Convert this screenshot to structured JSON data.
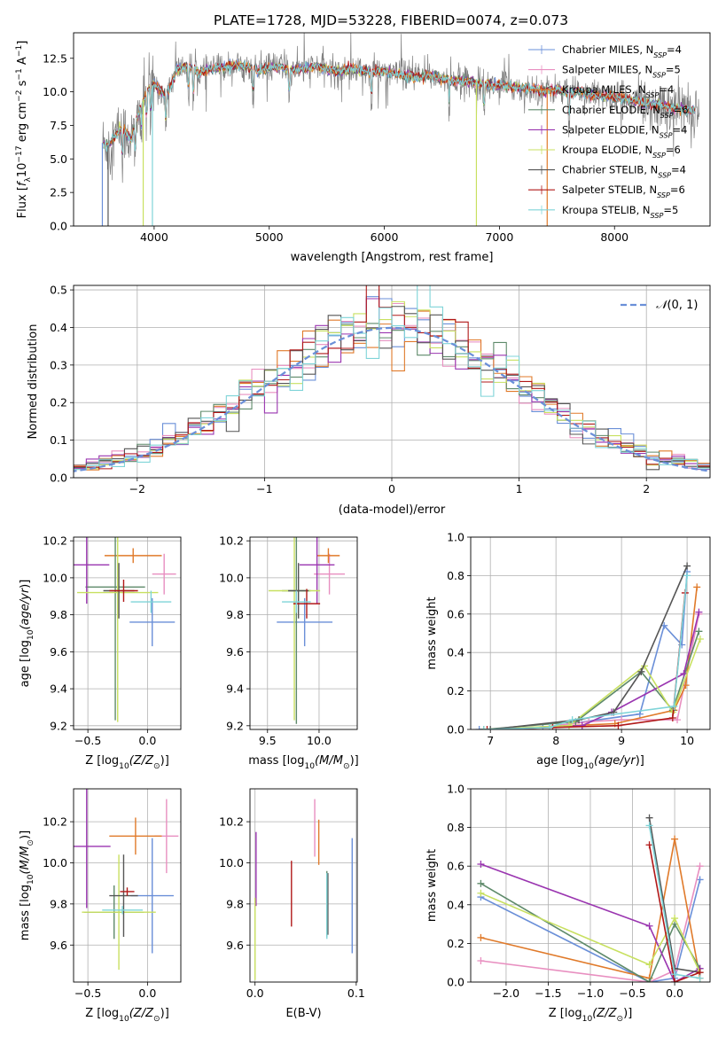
{
  "title": "PLATE=1728, MJD=53228, FIBERID=0074, z=0.073",
  "models": [
    {
      "label": "Chabrier MILES, N_{SSP}=4",
      "base": "Chabrier MILES, N",
      "sub": "SSP",
      "tail": "=4",
      "color": "#6a8fd8"
    },
    {
      "label": "Salpeter MILES, N_{SSP}=5",
      "base": "Salpeter MILES, N",
      "sub": "SSP",
      "tail": "=5",
      "color": "#e88fc0"
    },
    {
      "label": "Kroupa MILES, N_{SSP}=4",
      "base": "Kroupa MILES, N",
      "sub": "SSP",
      "tail": "=4",
      "color": "#e07a2a"
    },
    {
      "label": "Chabrier ELODIE, N_{SSP}=6",
      "base": "Chabrier ELODIE, N",
      "sub": "SSP",
      "tail": "=6",
      "color": "#5e8a6a"
    },
    {
      "label": "Salpeter ELODIE, N_{SSP}=4",
      "base": "Salpeter ELODIE, N",
      "sub": "SSP",
      "tail": "=4",
      "color": "#9a35b0"
    },
    {
      "label": "Kroupa ELODIE, N_{SSP}=6",
      "base": "Kroupa ELODIE, N",
      "sub": "SSP",
      "tail": "=6",
      "color": "#c8e060"
    },
    {
      "label": "Chabrier STELIB, N_{SSP}=4",
      "base": "Chabrier STELIB, N",
      "sub": "SSP",
      "tail": "=4",
      "color": "#555555"
    },
    {
      "label": "Salpeter STELIB, N_{SSP}=6",
      "base": "Salpeter STELIB, N",
      "sub": "SSP",
      "tail": "=6",
      "color": "#b01818"
    },
    {
      "label": "Kroupa STELIB, N_{SSP}=5",
      "base": "Kroupa STELIB, N",
      "sub": "SSP",
      "tail": "=5",
      "color": "#7fd4d8"
    }
  ],
  "chart_data": [
    {
      "id": "spectrum",
      "type": "line",
      "xlabel": "wavelength [Angstrom, rest frame]",
      "ylabel": "Flux [f_λ 10^-17 erg cm^-2 s^-1 A^-1]",
      "ylabel_parts": [
        "Flux [",
        "f",
        "λ",
        "10",
        "−17",
        " erg cm",
        "−2",
        " s",
        "−1",
        " A",
        "−1",
        "]"
      ],
      "xlim": [
        3300,
        8830
      ],
      "ylim": [
        0,
        14.4
      ],
      "xticks": [
        4000,
        5000,
        6000,
        7000,
        8000
      ],
      "yticks": [
        0.0,
        2.5,
        5.0,
        7.5,
        10.0,
        12.5
      ],
      "ytick_labels": [
        "0.0",
        "2.5",
        "5.0",
        "7.5",
        "10.0",
        "12.5"
      ],
      "data_color": "#808080",
      "continuum": {
        "x": [
          3550,
          3600,
          3650,
          3700,
          3750,
          3800,
          3850,
          3900,
          3950,
          4000,
          4050,
          4100,
          4150,
          4200,
          4300,
          4400,
          4500,
          4600,
          4700,
          4800,
          4900,
          5000,
          5100,
          5200,
          5300,
          5400,
          5500,
          5600,
          5700,
          5800,
          5900,
          6000,
          6100,
          6200,
          6300,
          6400,
          6500,
          6600,
          6700,
          6800,
          6900,
          7000,
          7100,
          7200,
          7300,
          7400,
          7500,
          7600,
          7700,
          7800,
          7900,
          8000,
          8100,
          8200,
          8300,
          8400,
          8500,
          8600,
          8700
        ],
        "y": [
          6.2,
          6.0,
          6.6,
          7.2,
          7.0,
          6.4,
          7.9,
          9.3,
          10.2,
          10.6,
          10.2,
          9.6,
          10.6,
          11.7,
          11.9,
          11.4,
          11.7,
          11.8,
          12.0,
          11.9,
          11.6,
          11.8,
          11.9,
          11.6,
          11.7,
          11.9,
          11.7,
          11.5,
          11.7,
          11.6,
          11.5,
          11.5,
          11.3,
          11.2,
          11.1,
          11.2,
          11.0,
          10.8,
          10.8,
          10.7,
          10.5,
          10.5,
          10.4,
          10.3,
          10.2,
          10.1,
          10.2,
          9.9,
          10.0,
          9.8,
          9.7,
          9.6,
          9.5,
          9.3,
          9.1,
          9.0,
          8.8,
          8.7,
          8.6
        ]
      }
    },
    {
      "id": "residuals",
      "type": "histogram",
      "xlabel": "(data-model)/error",
      "ylabel": "Normed distribution",
      "xlim": [
        -2.5,
        2.5
      ],
      "ylim": [
        0,
        0.512
      ],
      "xticks": [
        -2,
        -1,
        0,
        1,
        2
      ],
      "xtick_labels": [
        "−2",
        "−1",
        "0",
        "1",
        "2"
      ],
      "yticks": [
        0.0,
        0.1,
        0.2,
        0.3,
        0.4,
        0.5
      ],
      "ytick_labels": [
        "0.0",
        "0.1",
        "0.2",
        "0.3",
        "0.4",
        "0.5"
      ],
      "bin_width": 0.1,
      "bin_start": -2.5,
      "reference_curve": {
        "name": "N(0,1)",
        "legend_prefix": "𝒩",
        "legend_suffix": "(0, 1)",
        "color": "#6a8fd8"
      },
      "series_offsets": [
        0,
        1,
        2,
        3,
        4,
        5,
        6,
        7,
        8
      ]
    },
    {
      "id": "age_vs_Z",
      "type": "errorbar",
      "xlabel": "Z [log10(Z/Z⊙)]",
      "ylabel": "age [log10(age/yr)]",
      "xlim": [
        -0.62,
        0.28
      ],
      "ylim": [
        9.18,
        10.22
      ],
      "xticks": [
        -0.5,
        0.0
      ],
      "xtick_labels": [
        "−0.5",
        "0.0"
      ],
      "yticks": [
        9.2,
        9.4,
        9.6,
        9.8,
        10.0,
        10.2
      ],
      "ytick_labels": [
        "9.2",
        "9.4",
        "9.6",
        "9.8",
        "10.0",
        "10.2"
      ],
      "points": [
        {
          "x": 0.04,
          "xerr": 0.19,
          "y": 9.76,
          "yerr": 0.13
        },
        {
          "x": 0.14,
          "xerr": 0.1,
          "y": 10.02,
          "yerr": 0.11
        },
        {
          "x": -0.12,
          "xerr": 0.24,
          "y": 10.12,
          "yerr": 0.04
        },
        {
          "x": -0.27,
          "xerr": 0.25,
          "y": 9.95,
          "yerr": 0.72
        },
        {
          "x": -0.51,
          "xerr": 0.19,
          "y": 10.07,
          "yerr": 0.21
        },
        {
          "x": -0.25,
          "xerr": 0.34,
          "y": 9.92,
          "yerr": 0.7
        },
        {
          "x": -0.24,
          "xerr": 0.13,
          "y": 9.93,
          "yerr": 0.15
        },
        {
          "x": -0.2,
          "xerr": 0.12,
          "y": 9.93,
          "yerr": 0.06
        },
        {
          "x": 0.03,
          "xerr": 0.17,
          "y": 9.87,
          "yerr": 0.06
        }
      ]
    },
    {
      "id": "age_vs_mass",
      "type": "errorbar",
      "xlabel": "mass [log10(M/M⊙)]",
      "xlim": [
        9.33,
        10.37
      ],
      "ylim": [
        9.18,
        10.22
      ],
      "xticks": [
        9.5,
        10.0
      ],
      "xtick_labels": [
        "9.5",
        "10.0"
      ],
      "yticks": [
        9.2,
        9.4,
        9.6,
        9.8,
        10.0,
        10.2
      ],
      "ytick_labels": [
        "9.2",
        "9.4",
        "9.6",
        "9.8",
        "10.0",
        "10.2"
      ],
      "points": [
        {
          "x": 9.86,
          "xerr": 0.27,
          "y": 9.76,
          "yerr": 0.13
        },
        {
          "x": 10.1,
          "xerr": 0.15,
          "y": 10.02,
          "yerr": 0.11
        },
        {
          "x": 10.09,
          "xerr": 0.11,
          "y": 10.12,
          "yerr": 0.04
        },
        {
          "x": 9.78,
          "xerr": 0.14,
          "y": 9.93,
          "yerr": 0.72
        },
        {
          "x": 9.98,
          "xerr": 0.17,
          "y": 10.07,
          "yerr": 0.21
        },
        {
          "x": 9.76,
          "xerr": 0.25,
          "y": 9.93,
          "yerr": 0.7
        },
        {
          "x": 9.8,
          "xerr": 0.1,
          "y": 9.93,
          "yerr": 0.15
        },
        {
          "x": 9.88,
          "xerr": 0.13,
          "y": 9.86,
          "yerr": 0.08
        },
        {
          "x": 9.78,
          "xerr": 0.14,
          "y": 9.87,
          "yerr": 0.06
        }
      ]
    },
    {
      "id": "weight_vs_age",
      "type": "line",
      "xlabel": "age [log10(age/yr)]",
      "ylabel": "mass weight",
      "xlim": [
        6.7,
        10.35
      ],
      "ylim": [
        0,
        1.0
      ],
      "xticks": [
        7,
        8,
        9,
        10
      ],
      "xtick_labels": [
        "7",
        "8",
        "9",
        "10"
      ],
      "yticks": [
        0.0,
        0.2,
        0.4,
        0.6,
        0.8,
        1.0
      ],
      "ytick_labels": [
        "0.0",
        "0.2",
        "0.4",
        "0.6",
        "0.8",
        "1.0"
      ],
      "series": [
        {
          "x": [
            6.83,
            7.8,
            9.28,
            9.65,
            9.92,
            10.0
          ],
          "y": [
            0.0,
            0.01,
            0.08,
            0.54,
            0.44,
            0.82
          ]
        },
        {
          "x": [
            7.5,
            8.5,
            9.0,
            9.85,
            10.18
          ],
          "y": [
            0.0,
            0.04,
            0.05,
            0.05,
            0.6
          ]
        },
        {
          "x": [
            6.9,
            8.9,
            9.8,
            9.98,
            10.15
          ],
          "y": [
            0.0,
            0.03,
            0.1,
            0.23,
            0.74
          ]
        },
        {
          "x": [
            6.9,
            8.3,
            9.3,
            9.78,
            10.18
          ],
          "y": [
            0.0,
            0.04,
            0.3,
            0.1,
            0.51
          ]
        },
        {
          "x": [
            6.9,
            8.4,
            8.85,
            9.95,
            10.18
          ],
          "y": [
            0.0,
            0.02,
            0.09,
            0.29,
            0.61
          ]
        },
        {
          "x": [
            6.9,
            8.2,
            9.35,
            9.78,
            10.2
          ],
          "y": [
            0.0,
            0.02,
            0.33,
            0.09,
            0.47
          ]
        },
        {
          "x": [
            7.0,
            8.35,
            8.88,
            9.3,
            10.0
          ],
          "y": [
            0.0,
            0.05,
            0.09,
            0.3,
            0.85
          ]
        },
        {
          "x": [
            6.95,
            7.95,
            8.95,
            9.78,
            9.97
          ],
          "y": [
            0.0,
            0.01,
            0.02,
            0.06,
            0.71
          ]
        },
        {
          "x": [
            6.9,
            7.9,
            8.25,
            9.8,
            10.0
          ],
          "y": [
            0.0,
            0.01,
            0.05,
            0.12,
            0.8
          ]
        }
      ]
    },
    {
      "id": "mass_vs_Z",
      "type": "errorbar",
      "xlabel": "Z [log10(Z/Z⊙)]",
      "ylabel": "mass [log10(M/M⊙)]",
      "xlim": [
        -0.62,
        0.28
      ],
      "ylim": [
        9.42,
        10.36
      ],
      "xticks": [
        -0.5,
        0.0
      ],
      "xtick_labels": [
        "−0.5",
        "0.0"
      ],
      "yticks": [
        9.6,
        9.8,
        10.0,
        10.2
      ],
      "ytick_labels": [
        "9.6",
        "9.8",
        "10.0",
        "10.2"
      ],
      "points": [
        {
          "x": 0.04,
          "xerr": 0.18,
          "y": 9.84,
          "yerr": 0.28
        },
        {
          "x": 0.16,
          "xerr": 0.1,
          "y": 10.13,
          "yerr": 0.18
        },
        {
          "x": -0.1,
          "xerr": 0.22,
          "y": 10.13,
          "yerr": 0.09
        },
        {
          "x": -0.28,
          "xerr": 0.25,
          "y": 9.76,
          "yerr": 0.13
        },
        {
          "x": -0.51,
          "xerr": 0.2,
          "y": 10.08,
          "yerr": 0.3
        },
        {
          "x": -0.24,
          "xerr": 0.31,
          "y": 9.76,
          "yerr": 0.28
        },
        {
          "x": -0.2,
          "xerr": 0.12,
          "y": 9.84,
          "yerr": 0.2
        },
        {
          "x": -0.17,
          "xerr": 0.06,
          "y": 9.86,
          "yerr": 0.02
        },
        {
          "x": -0.21,
          "xerr": 0.17,
          "y": 9.77,
          "yerr": 0.02
        }
      ]
    },
    {
      "id": "mass_vs_ebv",
      "type": "errorbar",
      "xlabel": "E(B-V)",
      "xlim": [
        -0.005,
        0.101
      ],
      "ylim": [
        9.42,
        10.36
      ],
      "xticks": [
        0.0,
        0.1
      ],
      "xtick_labels": [
        "0.0",
        "0.1"
      ],
      "yticks": [
        9.6,
        9.8,
        10.0,
        10.2
      ],
      "ytick_labels": [
        "9.6",
        "9.8",
        "10.0",
        "10.2"
      ],
      "points": [
        {
          "x": 0.096,
          "y": 9.84,
          "yerr": 0.28
        },
        {
          "x": 0.059,
          "y": 10.17,
          "yerr": 0.14
        },
        {
          "x": 0.063,
          "y": 10.1,
          "yerr": 0.11
        },
        {
          "x": 0.071,
          "y": 9.8,
          "yerr": 0.16
        },
        {
          "x": 0.001,
          "y": 9.97,
          "yerr": 0.18
        },
        {
          "x": 0.0,
          "y": 9.63,
          "yerr": 0.2
        },
        {
          "x": 0.072,
          "y": 9.8,
          "yerr": 0.15
        },
        {
          "x": 0.036,
          "y": 9.85,
          "yerr": 0.16
        },
        {
          "x": 0.071,
          "y": 9.79,
          "yerr": 0.16
        }
      ]
    },
    {
      "id": "weight_vs_Z",
      "type": "line",
      "xlabel": "Z [log10(Z/Z⊙)]",
      "ylabel": "mass weight",
      "xlim": [
        -2.42,
        0.42
      ],
      "ylim": [
        0,
        1.0
      ],
      "xticks": [
        -2.0,
        -1.5,
        -1.0,
        -0.5,
        0.0
      ],
      "xtick_labels": [
        "−2.0",
        "−1.5",
        "−1.0",
        "−0.5",
        "0.0"
      ],
      "yticks": [
        0.0,
        0.2,
        0.4,
        0.6,
        0.8,
        1.0
      ],
      "ytick_labels": [
        "0.0",
        "0.2",
        "0.4",
        "0.6",
        "0.8",
        "1.0"
      ],
      "series": [
        {
          "x": [
            -2.3,
            -0.3,
            0.0,
            0.3
          ],
          "y": [
            0.44,
            0.0,
            0.02,
            0.53
          ]
        },
        {
          "x": [
            -2.3,
            -0.3,
            0.0,
            0.3
          ],
          "y": [
            0.11,
            0.0,
            0.06,
            0.6
          ]
        },
        {
          "x": [
            -2.3,
            -0.3,
            0.0,
            0.3
          ],
          "y": [
            0.23,
            0.02,
            0.74,
            0.02
          ]
        },
        {
          "x": [
            -2.3,
            -0.3,
            0.0,
            0.3
          ],
          "y": [
            0.51,
            0.0,
            0.3,
            0.07
          ]
        },
        {
          "x": [
            -2.3,
            -0.3,
            0.0,
            0.3
          ],
          "y": [
            0.61,
            0.29,
            0.0,
            0.07
          ]
        },
        {
          "x": [
            -2.3,
            -0.3,
            0.0,
            0.3
          ],
          "y": [
            0.46,
            0.09,
            0.33,
            0.05
          ]
        },
        {
          "x": [
            -0.3,
            0.0,
            0.3
          ],
          "y": [
            0.85,
            0.07,
            0.05
          ]
        },
        {
          "x": [
            -0.3,
            0.0,
            0.3
          ],
          "y": [
            0.71,
            0.0,
            0.05
          ]
        },
        {
          "x": [
            -0.3,
            0.0,
            0.3
          ],
          "y": [
            0.81,
            0.04,
            0.02
          ]
        }
      ]
    }
  ]
}
